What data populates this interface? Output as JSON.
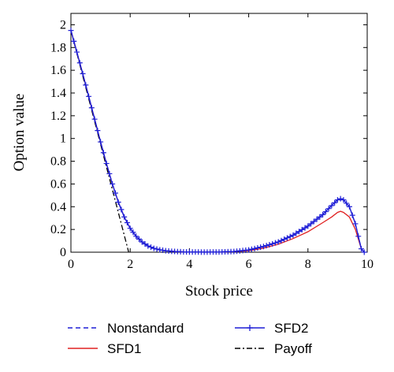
{
  "chart_data": {
    "type": "line",
    "title": "",
    "xlabel": "Stock price",
    "ylabel": "Option value",
    "xlim": [
      0,
      10
    ],
    "ylim": [
      0,
      2.1
    ],
    "xticks": [
      0,
      2,
      4,
      6,
      8,
      10
    ],
    "yticks": [
      0,
      0.2,
      0.4,
      0.6,
      0.8,
      1,
      1.2,
      1.4,
      1.6,
      1.8,
      2
    ],
    "grid": false,
    "legend_position": "below",
    "series": [
      {
        "name": "Nonstandard",
        "color": "#1f1fd6",
        "style": "dashed",
        "points": [
          [
            0,
            1.95
          ],
          [
            0.2,
            1.76
          ],
          [
            0.4,
            1.57
          ],
          [
            0.6,
            1.37
          ],
          [
            0.8,
            1.17
          ],
          [
            1.0,
            0.97
          ],
          [
            1.2,
            0.78
          ],
          [
            1.4,
            0.6
          ],
          [
            1.6,
            0.44
          ],
          [
            1.8,
            0.31
          ],
          [
            2.0,
            0.21
          ],
          [
            2.2,
            0.14
          ],
          [
            2.4,
            0.09
          ],
          [
            2.6,
            0.055
          ],
          [
            2.8,
            0.034
          ],
          [
            3.0,
            0.021
          ],
          [
            3.2,
            0.013
          ],
          [
            3.4,
            0.008
          ],
          [
            3.6,
            0.005
          ],
          [
            3.8,
            0.003
          ],
          [
            4.0,
            0.002
          ],
          [
            4.5,
            0.001
          ],
          [
            5.0,
            0.002
          ],
          [
            5.5,
            0.006
          ],
          [
            6.0,
            0.02
          ],
          [
            6.5,
            0.05
          ],
          [
            7.0,
            0.09
          ],
          [
            7.5,
            0.15
          ],
          [
            8.0,
            0.23
          ],
          [
            8.5,
            0.33
          ],
          [
            8.8,
            0.41
          ],
          [
            9.0,
            0.46
          ],
          [
            9.1,
            0.47
          ],
          [
            9.2,
            0.46
          ],
          [
            9.4,
            0.4
          ],
          [
            9.6,
            0.25
          ],
          [
            9.8,
            0.03
          ],
          [
            9.9,
            0
          ]
        ]
      },
      {
        "name": "SFD1",
        "color": "#e02020",
        "style": "solid",
        "points": [
          [
            0,
            1.95
          ],
          [
            0.2,
            1.76
          ],
          [
            0.4,
            1.57
          ],
          [
            0.6,
            1.37
          ],
          [
            0.8,
            1.17
          ],
          [
            1.0,
            0.97
          ],
          [
            1.2,
            0.78
          ],
          [
            1.4,
            0.6
          ],
          [
            1.6,
            0.44
          ],
          [
            1.8,
            0.31
          ],
          [
            2.0,
            0.21
          ],
          [
            2.2,
            0.14
          ],
          [
            2.4,
            0.09
          ],
          [
            2.6,
            0.055
          ],
          [
            2.8,
            0.034
          ],
          [
            3.0,
            0.021
          ],
          [
            3.2,
            0.013
          ],
          [
            3.4,
            0.008
          ],
          [
            3.6,
            0.005
          ],
          [
            3.8,
            0.003
          ],
          [
            4.0,
            0.002
          ],
          [
            4.5,
            0.001
          ],
          [
            5.0,
            0.001
          ],
          [
            5.5,
            0.004
          ],
          [
            6.0,
            0.013
          ],
          [
            6.5,
            0.035
          ],
          [
            7.0,
            0.07
          ],
          [
            7.5,
            0.12
          ],
          [
            8.0,
            0.18
          ],
          [
            8.5,
            0.26
          ],
          [
            8.8,
            0.31
          ],
          [
            9.0,
            0.35
          ],
          [
            9.1,
            0.36
          ],
          [
            9.2,
            0.35
          ],
          [
            9.4,
            0.31
          ],
          [
            9.6,
            0.2
          ],
          [
            9.8,
            0.03
          ],
          [
            9.9,
            0
          ]
        ]
      },
      {
        "name": "SFD2",
        "color": "#1f1fd6",
        "style": "solid-plus-markers",
        "points": [
          [
            0,
            1.95
          ],
          [
            0.2,
            1.76
          ],
          [
            0.4,
            1.57
          ],
          [
            0.6,
            1.37
          ],
          [
            0.8,
            1.17
          ],
          [
            1.0,
            0.97
          ],
          [
            1.2,
            0.78
          ],
          [
            1.4,
            0.6
          ],
          [
            1.6,
            0.44
          ],
          [
            1.8,
            0.31
          ],
          [
            2.0,
            0.21
          ],
          [
            2.2,
            0.14
          ],
          [
            2.4,
            0.09
          ],
          [
            2.6,
            0.055
          ],
          [
            2.8,
            0.034
          ],
          [
            3.0,
            0.021
          ],
          [
            3.2,
            0.013
          ],
          [
            3.4,
            0.008
          ],
          [
            3.6,
            0.005
          ],
          [
            3.8,
            0.003
          ],
          [
            4.0,
            0.002
          ],
          [
            4.5,
            0.001
          ],
          [
            5.0,
            0.002
          ],
          [
            5.5,
            0.006
          ],
          [
            6.0,
            0.02
          ],
          [
            6.5,
            0.05
          ],
          [
            7.0,
            0.09
          ],
          [
            7.5,
            0.15
          ],
          [
            8.0,
            0.23
          ],
          [
            8.5,
            0.33
          ],
          [
            8.8,
            0.41
          ],
          [
            9.0,
            0.46
          ],
          [
            9.1,
            0.47
          ],
          [
            9.2,
            0.46
          ],
          [
            9.4,
            0.4
          ],
          [
            9.6,
            0.25
          ],
          [
            9.8,
            0.03
          ],
          [
            9.9,
            0
          ]
        ]
      },
      {
        "name": "Payoff",
        "color": "#000000",
        "style": "dash-dot",
        "points": [
          [
            0,
            1.95
          ],
          [
            0.5,
            1.45
          ],
          [
            1.0,
            0.95
          ],
          [
            1.5,
            0.45
          ],
          [
            1.95,
            0
          ]
        ]
      }
    ]
  }
}
